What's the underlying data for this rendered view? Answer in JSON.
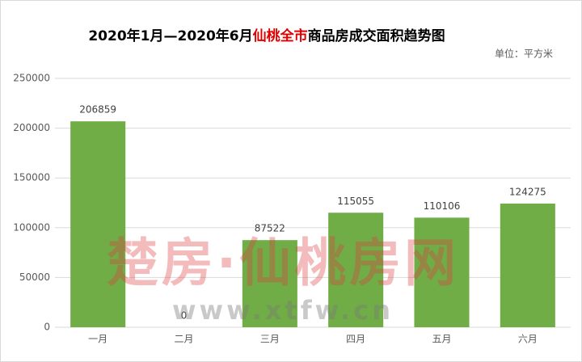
{
  "chart_data": {
    "type": "bar",
    "title_parts": [
      {
        "text": "2020年1月—2020年6月",
        "color": "#000000"
      },
      {
        "text": "仙桃全市",
        "color": "#e00000"
      },
      {
        "text": "商品房成交面积趋势图",
        "color": "#000000"
      }
    ],
    "unit_label": "单位：平方米",
    "categories": [
      "一月",
      "二月",
      "三月",
      "四月",
      "五月",
      "六月"
    ],
    "values": [
      206859,
      0,
      87522,
      115055,
      110106,
      124275
    ],
    "color": "#70ad47",
    "ylim": [
      0,
      250000
    ],
    "yticks": [
      0,
      50000,
      100000,
      150000,
      200000,
      250000
    ],
    "grid": true,
    "watermark": [
      "楚房·仙桃房网",
      "www.xtfw.cn"
    ]
  }
}
